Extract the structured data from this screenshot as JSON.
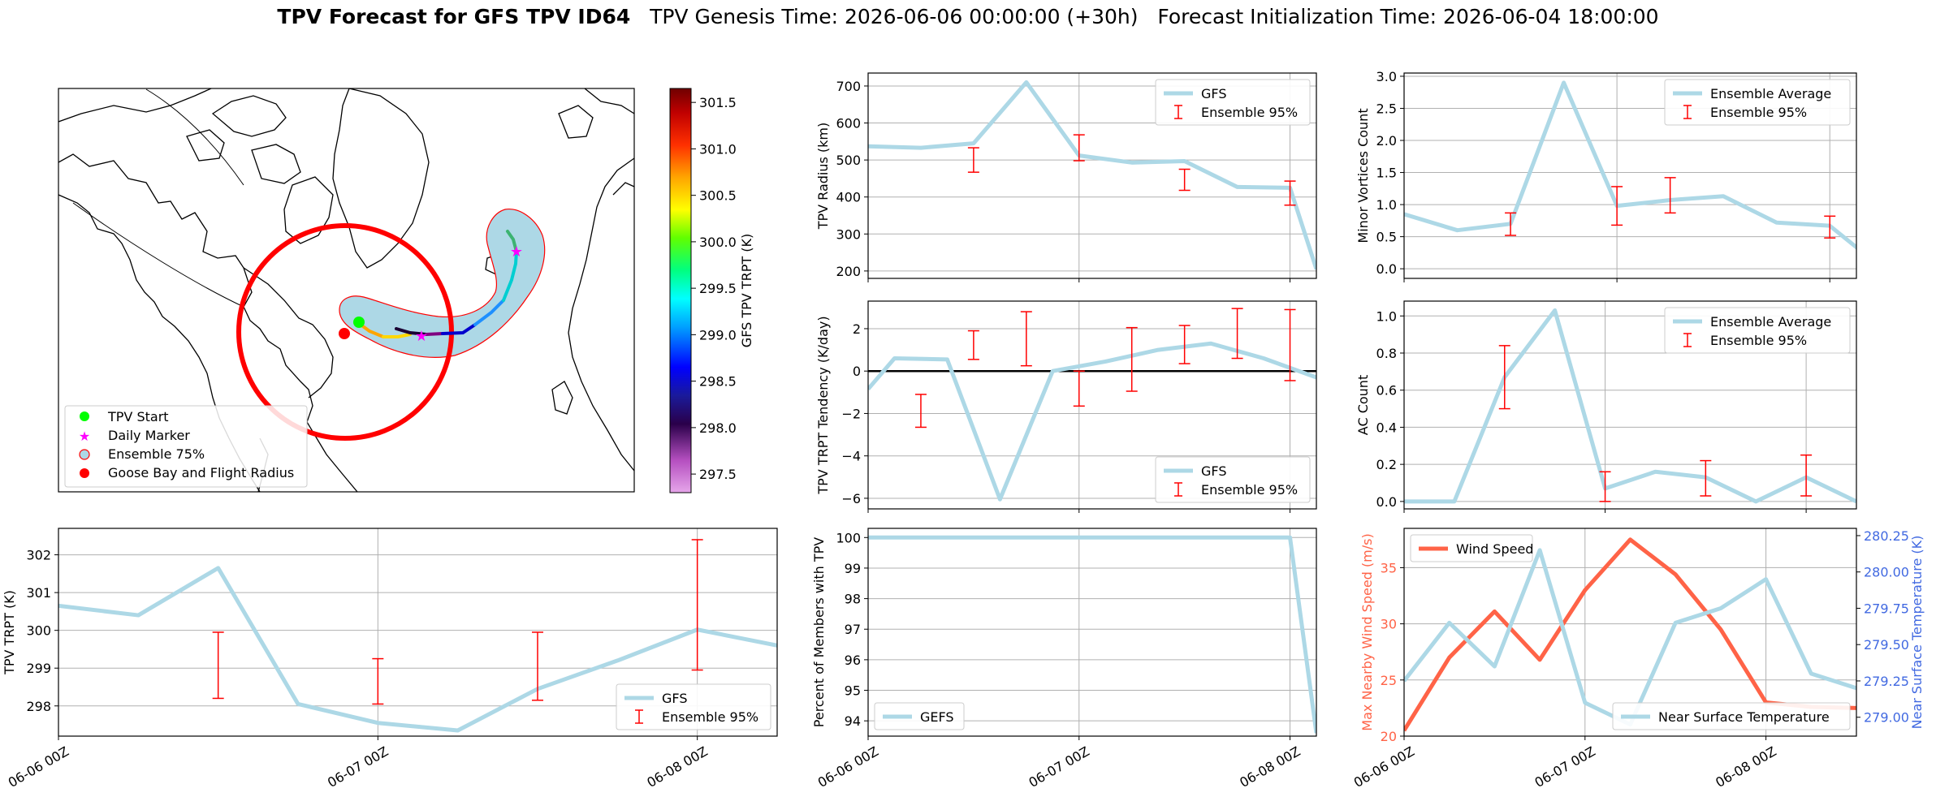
{
  "title": {
    "bold": "TPV Forecast for GFS TPV ID64",
    "rest": "   TPV Genesis Time: 2026-06-06 00:00:00 (+30h)   Forecast Initialization Time: 2026-06-04 18:00:00"
  },
  "map": {
    "colorbar": {
      "label": "GFS TPV TRPT (K)",
      "ticks": [
        "301.5",
        "301.0",
        "300.5",
        "300.0",
        "299.5",
        "299.0",
        "298.5",
        "298.0",
        "297.5"
      ],
      "range": [
        297.3,
        301.65
      ]
    },
    "legend": [
      {
        "label": "TPV Start",
        "marker": "green-dot"
      },
      {
        "label": "Daily Marker",
        "marker": "magenta-star"
      },
      {
        "label": "Ensemble 75%",
        "marker": "ensemble-circle"
      },
      {
        "label": "Goose Bay and Flight Radius",
        "marker": "red-dot"
      }
    ],
    "colors": {
      "ensemble_fill": "#add8e6",
      "flight_radius": "#ff0000",
      "start": "#00ff00",
      "daily": "#ff00ff"
    }
  },
  "chart_data": [
    {
      "id": "radius",
      "type": "line",
      "ylabel": "TPV Radius (km)",
      "xlabel": "",
      "ylim": [
        180,
        735
      ],
      "yticks": [
        200,
        300,
        400,
        500,
        600,
        700
      ],
      "xticks": [],
      "grid": true,
      "x_hours": [
        0,
        6,
        12,
        18,
        24,
        30,
        36,
        42,
        48,
        51
      ],
      "series": [
        {
          "name": "GFS",
          "values": [
            537,
            533,
            545,
            710,
            512,
            493,
            497,
            427,
            425,
            205
          ]
        }
      ],
      "ensemble95": [
        {
          "x_hours": 12,
          "low": 467,
          "high": 533
        },
        {
          "x_hours": 24,
          "low": 498,
          "high": 568
        },
        {
          "x_hours": 36,
          "low": 418,
          "high": 475
        },
        {
          "x_hours": 48,
          "low": 378,
          "high": 443
        }
      ],
      "legend": [
        "GFS",
        "Ensemble 95%"
      ],
      "legend_position": "top-right"
    },
    {
      "id": "minor",
      "type": "line",
      "ylabel": "Minor Vortices Count",
      "ylim": [
        -0.15,
        3.05
      ],
      "yticks": [
        "0.0",
        "0.5",
        "1.0",
        "1.5",
        "2.0",
        "2.5",
        "3.0"
      ],
      "grid": true,
      "x_hours": [
        0,
        6,
        12,
        18,
        24,
        30,
        36,
        42,
        48,
        54
      ],
      "series": [
        {
          "name": "Ensemble Average",
          "values": [
            0.85,
            0.6,
            0.7,
            2.9,
            0.98,
            1.07,
            1.13,
            0.72,
            0.67,
            0.0
          ]
        }
      ],
      "ensemble95": [
        {
          "x_hours": 12,
          "low": 0.52,
          "high": 0.87
        },
        {
          "x_hours": 24,
          "low": 0.68,
          "high": 1.28
        },
        {
          "x_hours": 30,
          "low": 0.87,
          "high": 1.42
        },
        {
          "x_hours": 48,
          "low": 0.48,
          "high": 0.82
        }
      ],
      "legend": [
        "Ensemble Average",
        "Ensemble 95%"
      ],
      "legend_position": "top-right"
    },
    {
      "id": "tendency",
      "type": "line",
      "ylabel": "TPV TRPT Tendency (K/day)",
      "ylim": [
        -6.5,
        3.3
      ],
      "yticks": [
        "−6",
        "−4",
        "−2",
        "0",
        "2"
      ],
      "grid": true,
      "x_hours": [
        0,
        3,
        9,
        15,
        21,
        27,
        33,
        39,
        45,
        51
      ],
      "series": [
        {
          "name": "GFS",
          "values": [
            -0.85,
            0.6,
            0.55,
            -6.05,
            0.0,
            0.45,
            1.0,
            1.3,
            0.6,
            -0.3
          ]
        }
      ],
      "ensemble95": [
        {
          "x_hours": 6,
          "low": -2.65,
          "high": -1.1
        },
        {
          "x_hours": 12,
          "low": 0.55,
          "high": 1.9
        },
        {
          "x_hours": 18,
          "low": 0.25,
          "high": 2.8
        },
        {
          "x_hours": 24,
          "low": -1.65,
          "high": 0.0
        },
        {
          "x_hours": 30,
          "low": -0.95,
          "high": 2.05
        },
        {
          "x_hours": 36,
          "low": 0.35,
          "high": 2.15
        },
        {
          "x_hours": 42,
          "low": 0.6,
          "high": 2.95
        },
        {
          "x_hours": 48,
          "low": -0.45,
          "high": 2.9
        }
      ],
      "zero_line": true,
      "legend": [
        "GFS",
        "Ensemble 95%"
      ],
      "legend_position": "bottom-right"
    },
    {
      "id": "ac",
      "type": "line",
      "ylabel": "AC Count",
      "ylim": [
        -0.04,
        1.08
      ],
      "yticks": [
        "0.0",
        "0.2",
        "0.4",
        "0.6",
        "0.8",
        "1.0"
      ],
      "grid": true,
      "x_hours": [
        0,
        6,
        12,
        18,
        24,
        30,
        36,
        42,
        48,
        54
      ],
      "series": [
        {
          "name": "Ensemble Average",
          "values": [
            0.0,
            0.0,
            0.67,
            1.03,
            0.07,
            0.16,
            0.13,
            0.0,
            0.13,
            0.0
          ]
        }
      ],
      "ensemble95": [
        {
          "x_hours": 12,
          "low": 0.5,
          "high": 0.84
        },
        {
          "x_hours": 24,
          "low": 0.0,
          "high": 0.16
        },
        {
          "x_hours": 36,
          "low": 0.03,
          "high": 0.22
        },
        {
          "x_hours": 48,
          "low": 0.03,
          "high": 0.25
        }
      ],
      "legend": [
        "Ensemble Average",
        "Ensemble 95%"
      ],
      "legend_position": "top-right"
    },
    {
      "id": "trpt",
      "type": "line",
      "ylabel": "TPV TRPT (K)",
      "ylim": [
        297.2,
        302.7
      ],
      "yticks": [
        298,
        299,
        300,
        301,
        302
      ],
      "grid": true,
      "xticks": [
        "06-06 00Z",
        "06-07 00Z",
        "06-08 00Z"
      ],
      "x_hours": [
        0,
        6,
        12,
        18,
        24,
        30,
        36,
        42,
        48,
        54
      ],
      "series": [
        {
          "name": "GFS",
          "values": [
            300.65,
            300.4,
            301.65,
            298.05,
            297.55,
            297.35,
            298.45,
            299.2,
            300.02,
            299.6
          ]
        }
      ],
      "ensemble95": [
        {
          "x_hours": 12,
          "low": 298.2,
          "high": 299.95
        },
        {
          "x_hours": 24,
          "low": 298.05,
          "high": 299.25
        },
        {
          "x_hours": 36,
          "low": 298.15,
          "high": 299.95
        },
        {
          "x_hours": 48,
          "low": 298.95,
          "high": 302.4
        }
      ],
      "legend": [
        "GFS",
        "Ensemble 95%"
      ],
      "legend_position": "bottom-right"
    },
    {
      "id": "members",
      "type": "line",
      "ylabel": "Percent of Members with TPV",
      "ylim": [
        93.5,
        100.3
      ],
      "yticks": [
        94,
        95,
        96,
        97,
        98,
        99,
        100
      ],
      "grid": true,
      "xticks": [
        "06-06 00Z",
        "06-07 00Z",
        "06-08 00Z"
      ],
      "x_hours": [
        0,
        6,
        12,
        18,
        24,
        30,
        36,
        42,
        48,
        51
      ],
      "series": [
        {
          "name": "GEFS",
          "values": [
            100,
            100,
            100,
            100,
            100,
            100,
            100,
            100,
            100,
            93.6
          ]
        }
      ],
      "legend": [
        "GEFS"
      ],
      "legend_position": "bottom-left"
    },
    {
      "id": "wind",
      "type": "line",
      "ylabel": "Max Nearby Wind Speed (m/s)",
      "ylabel_right": "Near Surface Temperature (K)",
      "ylim": [
        20,
        38.5
      ],
      "yticks": [
        20,
        25,
        30,
        35
      ],
      "ylim_right": [
        278.87,
        280.3
      ],
      "yticks_right": [
        "279.00",
        "279.25",
        "279.50",
        "279.75",
        "280.00",
        "280.25"
      ],
      "grid": true,
      "xticks": [
        "06-06 00Z",
        "06-07 00Z",
        "06-08 00Z"
      ],
      "x_hours": [
        0,
        3,
        6,
        9,
        12,
        15,
        18,
        21,
        24,
        27,
        30
      ],
      "series": [
        {
          "name": "Wind Speed",
          "axis": "left",
          "x_hours": [
            0,
            3,
            6,
            9,
            12,
            15,
            18,
            21,
            24,
            27,
            30
          ],
          "values": [
            20.5,
            27.0,
            31.1,
            26.8,
            33.0,
            37.5,
            34.4,
            29.5,
            23.0,
            22.6,
            22.5
          ]
        },
        {
          "name": "Near Surface Temperature",
          "axis": "right",
          "x_hours": [
            0,
            3,
            6,
            9,
            12,
            15,
            18,
            21,
            24,
            27,
            30
          ],
          "values": [
            279.25,
            279.65,
            279.35,
            280.15,
            279.1,
            278.95,
            279.65,
            279.75,
            279.95,
            279.3,
            279.2
          ]
        }
      ],
      "legend_left": [
        "Wind Speed"
      ],
      "legend_right": [
        "Near Surface Temperature"
      ],
      "colors": {
        "wind": "#ff6347",
        "temp": "#add8e6",
        "left_axis": "#ff6347",
        "right_axis": "#4169e1"
      }
    }
  ]
}
